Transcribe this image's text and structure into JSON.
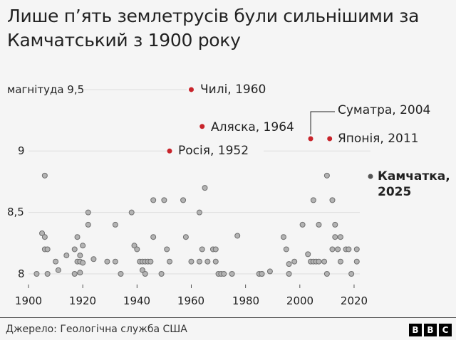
{
  "title": "Лише п’ять землетрусів були сильнішими за Камчатський з 1900 року",
  "source": "Джерело: Геологічна служба США",
  "logo": [
    "B",
    "B",
    "C"
  ],
  "colors": {
    "background": "#f5f5f5",
    "highlight": "#c8242b",
    "kamchatka": "#555555",
    "other": "#b3b3b3",
    "other_stroke": "#6e6e6e",
    "grid": "#dddddd"
  },
  "y_labels": {
    "9_5": "магнітуда 9,5",
    "9": "9",
    "8_5": "8,5",
    "8": "8"
  },
  "x_labels": [
    "1900",
    "1920",
    "1940",
    "1960",
    "1980",
    "2000",
    "2020"
  ],
  "annotations": {
    "chile": "Чилі, 1960",
    "alaska": "Аляска, 1964",
    "russia": "Росія, 1952",
    "sumatra": "Суматра, 2004",
    "japan": "Японія, 2011",
    "kamchatka_line1": "Камчатка,",
    "kamchatka_line2": "2025"
  },
  "chart_data": {
    "type": "scatter",
    "title": "Лише п’ять землетрусів були сильнішими за Камчатський з 1900 року",
    "xlabel": "",
    "ylabel": "магнітуда",
    "xlim": [
      1897,
      2027
    ],
    "ylim": [
      7.95,
      9.6
    ],
    "x_ticks": [
      1900,
      1920,
      1940,
      1960,
      1980,
      2000,
      2020
    ],
    "y_ticks": [
      8,
      8.5,
      9,
      9.5
    ],
    "grid": "horizontal",
    "highlighted": [
      {
        "label": "Чилі, 1960",
        "year": 1960,
        "magnitude": 9.5
      },
      {
        "label": "Аляска, 1964",
        "year": 1964,
        "magnitude": 9.2
      },
      {
        "label": "Росія, 1952",
        "year": 1952,
        "magnitude": 9.0
      },
      {
        "label": "Суматра, 2004",
        "year": 2004,
        "magnitude": 9.1
      },
      {
        "label": "Японія, 2011",
        "year": 2011,
        "magnitude": 9.1
      },
      {
        "label": "Камчатка, 2025",
        "year": 2025,
        "magnitude": 8.8
      }
    ],
    "others": [
      [
        1903,
        8.0
      ],
      [
        1905,
        8.33
      ],
      [
        1906,
        8.3
      ],
      [
        1906,
        8.2
      ],
      [
        1906,
        8.8
      ],
      [
        1907,
        8.2
      ],
      [
        1907,
        8.0
      ],
      [
        1910,
        8.1
      ],
      [
        1911,
        8.03
      ],
      [
        1914,
        8.15
      ],
      [
        1917,
        8.2
      ],
      [
        1917,
        8.0
      ],
      [
        1918,
        8.3
      ],
      [
        1918,
        8.1
      ],
      [
        1919,
        8.15
      ],
      [
        1919,
        8.01
      ],
      [
        1919,
        8.1
      ],
      [
        1920,
        8.23
      ],
      [
        1920,
        8.09
      ],
      [
        1922,
        8.5
      ],
      [
        1922,
        8.4
      ],
      [
        1924,
        8.12
      ],
      [
        1929,
        8.1
      ],
      [
        1932,
        8.1
      ],
      [
        1932,
        8.4
      ],
      [
        1934,
        8.0
      ],
      [
        1938,
        8.5
      ],
      [
        1939,
        8.23
      ],
      [
        1940,
        8.2
      ],
      [
        1941,
        8.1
      ],
      [
        1942,
        8.03
      ],
      [
        1942,
        8.1
      ],
      [
        1943,
        8.0
      ],
      [
        1943,
        8.1
      ],
      [
        1944,
        8.1
      ],
      [
        1945,
        8.1
      ],
      [
        1946,
        8.6
      ],
      [
        1946,
        8.3
      ],
      [
        1949,
        8.0
      ],
      [
        1950,
        8.6
      ],
      [
        1951,
        8.2
      ],
      [
        1952,
        8.1
      ],
      [
        1957,
        8.6
      ],
      [
        1958,
        8.3
      ],
      [
        1960,
        8.1
      ],
      [
        1963,
        8.5
      ],
      [
        1963,
        8.1
      ],
      [
        1964,
        8.2
      ],
      [
        1965,
        8.7
      ],
      [
        1966,
        8.1
      ],
      [
        1968,
        8.2
      ],
      [
        1969,
        8.1
      ],
      [
        1969,
        8.2
      ],
      [
        1970,
        8.0
      ],
      [
        1971,
        8.0
      ],
      [
        1972,
        8.0
      ],
      [
        1975,
        8.0
      ],
      [
        1977,
        8.31
      ],
      [
        1985,
        8.0
      ],
      [
        1986,
        8.0
      ],
      [
        1986,
        8.0
      ],
      [
        1989,
        8.02
      ],
      [
        1994,
        8.3
      ],
      [
        1995,
        8.2
      ],
      [
        1996,
        8.0
      ],
      [
        1996,
        8.08
      ],
      [
        1998,
        8.1
      ],
      [
        2001,
        8.4
      ],
      [
        2003,
        8.16
      ],
      [
        2004,
        8.1
      ],
      [
        2005,
        8.6
      ],
      [
        2005,
        8.1
      ],
      [
        2006,
        8.1
      ],
      [
        2007,
        8.1
      ],
      [
        2007,
        8.4
      ],
      [
        2009,
        8.1
      ],
      [
        2010,
        8.8
      ],
      [
        2010,
        8.0
      ],
      [
        2012,
        8.6
      ],
      [
        2012,
        8.2
      ],
      [
        2013,
        8.4
      ],
      [
        2013,
        8.3
      ],
      [
        2014,
        8.2
      ],
      [
        2015,
        8.1
      ],
      [
        2015,
        8.3
      ],
      [
        2017,
        8.2
      ],
      [
        2018,
        8.2
      ],
      [
        2019,
        8.0
      ],
      [
        2021,
        8.1
      ],
      [
        2021,
        8.2
      ]
    ]
  }
}
